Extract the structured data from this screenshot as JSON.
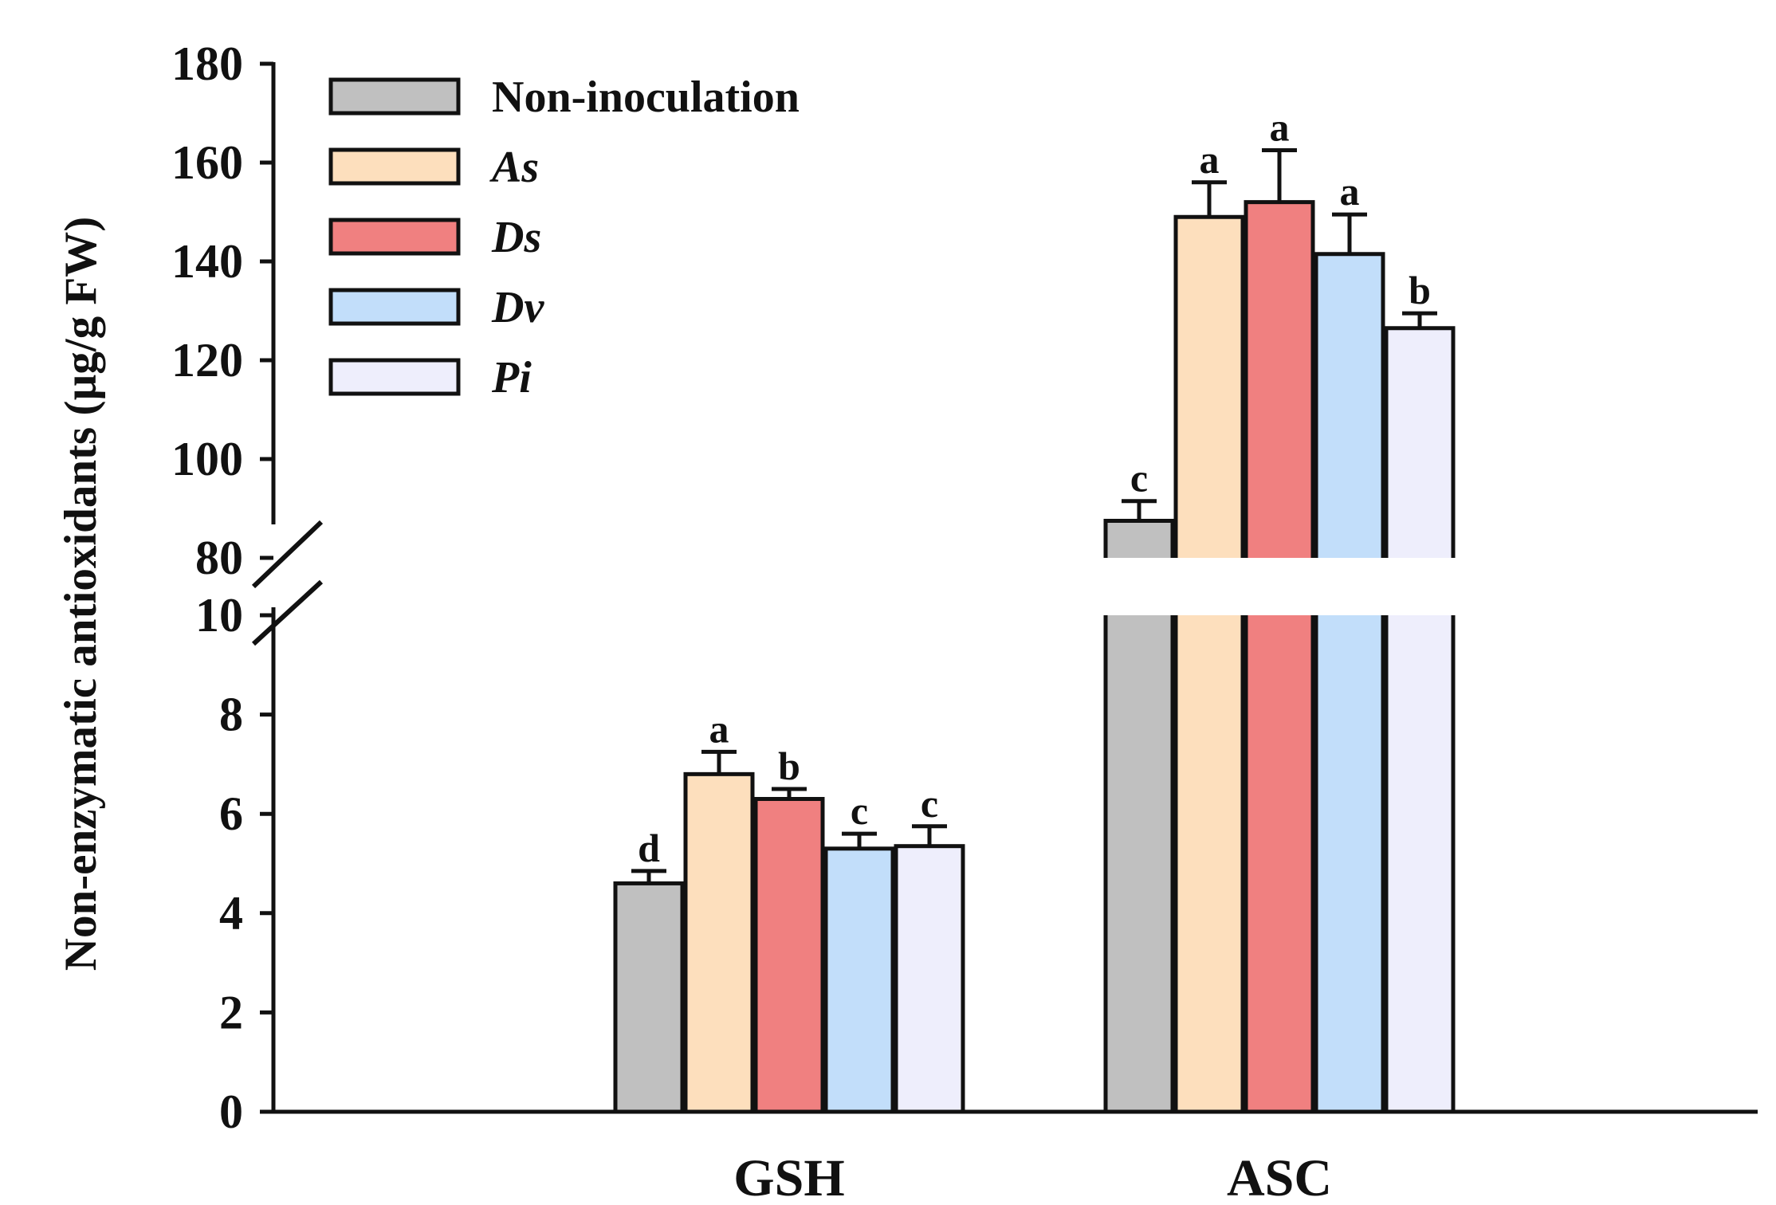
{
  "chart_data": {
    "type": "bar",
    "title": "",
    "xlabel": "",
    "ylabel": "Non-enzymatic antioxidants (µg/g FW)",
    "categories": [
      "GSH",
      "ASC"
    ],
    "y_axis_break": {
      "lower_segment": [
        0,
        10
      ],
      "upper_segment": [
        80,
        180
      ]
    },
    "lower_ticks": [
      "0",
      "2",
      "4",
      "6",
      "8",
      "10"
    ],
    "upper_ticks": [
      "80",
      "100",
      "120",
      "140",
      "160",
      "180"
    ],
    "series": [
      {
        "name": "Non-inoculation",
        "italic": false,
        "color": "#c0c0c0",
        "values": [
          4.6,
          87.5
        ],
        "errors": [
          0.25,
          4.0
        ],
        "letters": [
          "d",
          "c"
        ]
      },
      {
        "name": "As",
        "italic": true,
        "color": "#fddfbd",
        "values": [
          6.8,
          149
        ],
        "errors": [
          0.45,
          7.0
        ],
        "letters": [
          "a",
          "a"
        ]
      },
      {
        "name": "Ds",
        "italic": true,
        "color": "#f08080",
        "values": [
          6.3,
          152
        ],
        "errors": [
          0.2,
          10.5
        ],
        "letters": [
          "b",
          "a"
        ]
      },
      {
        "name": "Dv",
        "italic": true,
        "color": "#c2defa",
        "values": [
          5.3,
          141.5
        ],
        "errors": [
          0.3,
          8.0
        ],
        "letters": [
          "c",
          "a"
        ]
      },
      {
        "name": "Pi",
        "italic": true,
        "color": "#eeeefc",
        "values": [
          5.35,
          126.5
        ],
        "errors": [
          0.4,
          3.0
        ],
        "letters": [
          "c",
          "b"
        ]
      }
    ],
    "legend_position": "top-left"
  }
}
